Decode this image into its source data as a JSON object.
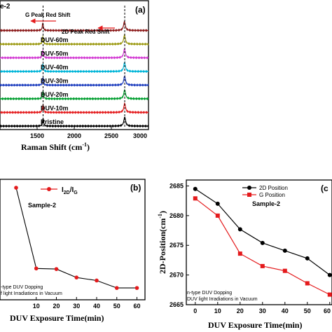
{
  "chart_data": [
    {
      "panel": "(a)",
      "type": "line",
      "title_partial": "e-2",
      "xlabel": "Raman Shift",
      "xlabel_unit": "(cm",
      "xlabel_exp": "-1",
      "xlabel_close": ")",
      "xlim": [
        1000,
        3000
      ],
      "xticks": [
        1500,
        2000,
        2500,
        3000
      ],
      "g_peak": 1580,
      "d2_peak": 2680,
      "annotation_g": "G Peak Red Shift",
      "annotation_2d": "2D Peak Red Shift",
      "series": [
        {
          "name": "Pristine",
          "color": "#000000"
        },
        {
          "name": "DUV-10m",
          "color": "#e41a1c"
        },
        {
          "name": "DUV-20m",
          "color": "#009e2f"
        },
        {
          "name": "DUV-30m",
          "color": "#1f3fbf"
        },
        {
          "name": "DUV-40m",
          "color": "#00b5d8"
        },
        {
          "name": "DUV-50m",
          "color": "#d33bd3"
        },
        {
          "name": "DUV-60m",
          "color": "#9c9a12"
        },
        {
          "name": "",
          "color": "#8b1a1a"
        }
      ]
    },
    {
      "panel": "(b)",
      "type": "line",
      "legend_main": "I",
      "legend_sub1": "2D",
      "legend_sep": "/I",
      "legend_sub2": "G",
      "sample_label": "Sample-2",
      "annotation_line1": "-type DUV Dopping",
      "annotation_line2": "f light Irradiations in Vacuum",
      "xlabel": "DUV Exposure Time(min)",
      "xlim": [
        -8,
        64
      ],
      "xticks": [
        10,
        20,
        30,
        40,
        50,
        60
      ],
      "ylim": [
        0,
        1
      ],
      "color": "#e41a1c",
      "x": [
        0,
        10,
        20,
        30,
        40,
        50,
        60
      ],
      "y": [
        0.93,
        0.26,
        0.255,
        0.185,
        0.16,
        0.098,
        0.098
      ]
    },
    {
      "panel": "(c",
      "type": "line",
      "ylabel": "2D-Position",
      "ylabel_unit": "(cm",
      "ylabel_exp": "-1",
      "ylabel_close": ")",
      "xlabel": "DUV Exposure Time(min)",
      "xlim": [
        -4,
        61
      ],
      "xticks": [
        0,
        10,
        20,
        30,
        40,
        50,
        60
      ],
      "ylim": [
        2665,
        2686
      ],
      "yticks": [
        2665,
        2670,
        2675,
        2680,
        2685
      ],
      "sample_label": "Sample-2",
      "annotation_line1": "n-type DUV Dopping",
      "annotation_line2": "DUV light Irradiations in Vacuum",
      "series": [
        {
          "name": "2D Position",
          "color": "#000000",
          "marker": "circle",
          "x": [
            0,
            10,
            20,
            30,
            40,
            50,
            60
          ],
          "y": [
            2684.5,
            2682.0,
            2677.7,
            2675.4,
            2674.1,
            2672.8,
            2670.0
          ]
        },
        {
          "name": "G Position",
          "color": "#e41a1c",
          "marker": "square",
          "x": [
            0,
            10,
            20,
            30,
            40,
            50,
            60
          ],
          "y": [
            2682.9,
            2680.0,
            2673.6,
            2671.5,
            2670.7,
            2668.6,
            2666.7
          ]
        }
      ]
    }
  ]
}
